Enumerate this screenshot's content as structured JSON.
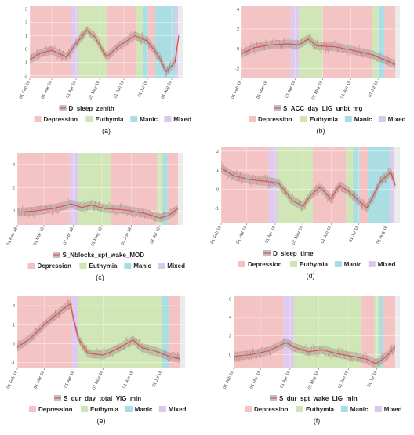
{
  "colors": {
    "depression": "#f4c2c2",
    "euthymia": "#cfe6b4",
    "manic": "#a8dde3",
    "mixed": "#dcc8ee",
    "line": "#d9534f",
    "ribbon": "#9a9a9a",
    "panel_bg": "#ebebeb",
    "grid": "#ffffff"
  },
  "legend_labels": {
    "depression": "Depression",
    "euthymia": "Euthymia",
    "manic": "Manic",
    "mixed": "Mixed"
  },
  "chart_data": [
    {
      "type": "line",
      "panel_label": "(a)",
      "series_name": "D_sleep_zenith",
      "ylim": [
        -2.2,
        3.2
      ],
      "y_ticks": [
        -2,
        -1,
        0,
        1,
        2,
        3
      ],
      "x_ticks": [
        "01 Feb 18",
        "01 Mar 18",
        "01 Apr 18",
        "01 May 18",
        "01 Jun 18",
        "01 Jul 18",
        "01 Aug 18"
      ],
      "xlim": [
        "2018-02-01",
        "2018-08-15"
      ],
      "states": [
        {
          "state": "depression",
          "start": "2018-02-01",
          "end": "2018-03-25"
        },
        {
          "state": "mixed",
          "start": "2018-03-25",
          "end": "2018-04-03"
        },
        {
          "state": "euthymia",
          "start": "2018-04-03",
          "end": "2018-05-10"
        },
        {
          "state": "depression",
          "start": "2018-05-10",
          "end": "2018-06-17"
        },
        {
          "state": "euthymia",
          "start": "2018-06-17",
          "end": "2018-06-25"
        },
        {
          "state": "manic",
          "start": "2018-06-25",
          "end": "2018-07-02"
        },
        {
          "state": "depression",
          "start": "2018-07-02",
          "end": "2018-07-11"
        },
        {
          "state": "manic",
          "start": "2018-07-11",
          "end": "2018-08-05"
        },
        {
          "state": "mixed",
          "start": "2018-08-05",
          "end": "2018-08-09"
        }
      ],
      "trend": [
        {
          "x": "2018-02-01",
          "y": -0.8
        },
        {
          "x": "2018-02-15",
          "y": -0.3
        },
        {
          "x": "2018-03-01",
          "y": -0.1
        },
        {
          "x": "2018-03-20",
          "y": -0.6
        },
        {
          "x": "2018-04-01",
          "y": 0.4
        },
        {
          "x": "2018-04-15",
          "y": 1.4
        },
        {
          "x": "2018-04-25",
          "y": 0.9
        },
        {
          "x": "2018-05-10",
          "y": -0.6
        },
        {
          "x": "2018-05-25",
          "y": 0.2
        },
        {
          "x": "2018-06-15",
          "y": 1.0
        },
        {
          "x": "2018-07-01",
          "y": 0.6
        },
        {
          "x": "2018-07-15",
          "y": -0.5
        },
        {
          "x": "2018-07-25",
          "y": -1.7
        },
        {
          "x": "2018-08-05",
          "y": -1.0
        },
        {
          "x": "2018-08-10",
          "y": 1.0
        }
      ]
    },
    {
      "type": "line",
      "panel_label": "(b)",
      "series_name": "S_ACC_day_LIG_unbt_mg",
      "ylim": [
        -3,
        4.3
      ],
      "y_ticks": [
        -2,
        0,
        2,
        4
      ],
      "x_ticks": [
        "01 Feb 18",
        "01 Mar 18",
        "01 Apr 18",
        "01 May 18",
        "01 Jun 18",
        "01 Jul 18"
      ],
      "xlim": [
        "2018-02-01",
        "2018-07-25"
      ],
      "states": [
        {
          "state": "depression",
          "start": "2018-02-01",
          "end": "2018-03-27"
        },
        {
          "state": "mixed",
          "start": "2018-03-27",
          "end": "2018-04-05"
        },
        {
          "state": "euthymia",
          "start": "2018-04-05",
          "end": "2018-05-01"
        },
        {
          "state": "depression",
          "start": "2018-05-01",
          "end": "2018-06-25"
        },
        {
          "state": "euthymia",
          "start": "2018-06-25",
          "end": "2018-07-01"
        },
        {
          "state": "manic",
          "start": "2018-07-01",
          "end": "2018-07-08"
        },
        {
          "state": "depression",
          "start": "2018-07-08",
          "end": "2018-07-20"
        }
      ],
      "trend": [
        {
          "x": "2018-02-01",
          "y": -0.5
        },
        {
          "x": "2018-02-15",
          "y": 0.1
        },
        {
          "x": "2018-03-05",
          "y": 0.4
        },
        {
          "x": "2018-03-25",
          "y": 0.5
        },
        {
          "x": "2018-04-05",
          "y": 0.4
        },
        {
          "x": "2018-04-15",
          "y": 1.0
        },
        {
          "x": "2018-04-25",
          "y": 0.3
        },
        {
          "x": "2018-05-15",
          "y": 0.2
        },
        {
          "x": "2018-06-05",
          "y": -0.2
        },
        {
          "x": "2018-06-25",
          "y": -0.6
        },
        {
          "x": "2018-07-10",
          "y": -1.2
        },
        {
          "x": "2018-07-20",
          "y": -1.6
        }
      ]
    },
    {
      "type": "line",
      "panel_label": "(c)",
      "series_name": "S_Nblocks_spt_wake_MOD",
      "ylim": [
        -1.2,
        5
      ],
      "y_ticks": [
        0,
        2,
        4
      ],
      "x_ticks": [
        "01 Feb 18",
        "01 Mar 18",
        "01 Apr 18",
        "01 May 18",
        "01 Jun 18",
        "01 Jul 18"
      ],
      "xlim": [
        "2018-02-01",
        "2018-07-25"
      ],
      "states": [
        {
          "state": "depression",
          "start": "2018-02-01",
          "end": "2018-03-28"
        },
        {
          "state": "mixed",
          "start": "2018-03-28",
          "end": "2018-04-06"
        },
        {
          "state": "euthymia",
          "start": "2018-04-06",
          "end": "2018-05-10"
        },
        {
          "state": "depression",
          "start": "2018-05-10",
          "end": "2018-06-28"
        },
        {
          "state": "euthymia",
          "start": "2018-06-28",
          "end": "2018-07-04"
        },
        {
          "state": "manic",
          "start": "2018-07-04",
          "end": "2018-07-09"
        },
        {
          "state": "depression",
          "start": "2018-07-09",
          "end": "2018-07-20"
        }
      ],
      "trend": [
        {
          "x": "2018-02-01",
          "y": -0.1
        },
        {
          "x": "2018-02-20",
          "y": 0.0
        },
        {
          "x": "2018-03-10",
          "y": 0.2
        },
        {
          "x": "2018-03-30",
          "y": 0.6
        },
        {
          "x": "2018-04-10",
          "y": 0.3
        },
        {
          "x": "2018-04-20",
          "y": 0.5
        },
        {
          "x": "2018-05-05",
          "y": 0.2
        },
        {
          "x": "2018-05-25",
          "y": 0.1
        },
        {
          "x": "2018-06-15",
          "y": -0.2
        },
        {
          "x": "2018-07-01",
          "y": -0.6
        },
        {
          "x": "2018-07-10",
          "y": -0.4
        },
        {
          "x": "2018-07-20",
          "y": 0.2
        }
      ]
    },
    {
      "type": "line",
      "panel_label": "(d)",
      "series_name": "D_sleep_time",
      "ylim": [
        -1.8,
        2.2
      ],
      "y_ticks": [
        -1,
        0,
        1,
        2
      ],
      "x_ticks": [
        "01 Feb 18",
        "01 Mar 18",
        "01 Apr 18",
        "01 May 18",
        "01 Jun 18",
        "01 Jul 18",
        "01 Aug 18"
      ],
      "xlim": [
        "2018-02-01",
        "2018-08-15"
      ],
      "states": [
        {
          "state": "depression",
          "start": "2018-02-01",
          "end": "2018-03-25"
        },
        {
          "state": "mixed",
          "start": "2018-03-25",
          "end": "2018-04-03"
        },
        {
          "state": "euthymia",
          "start": "2018-04-03",
          "end": "2018-05-12"
        },
        {
          "state": "depression",
          "start": "2018-05-12",
          "end": "2018-06-17"
        },
        {
          "state": "euthymia",
          "start": "2018-06-17",
          "end": "2018-06-25"
        },
        {
          "state": "manic",
          "start": "2018-06-25",
          "end": "2018-07-02"
        },
        {
          "state": "depression",
          "start": "2018-07-02",
          "end": "2018-07-11"
        },
        {
          "state": "manic",
          "start": "2018-07-11",
          "end": "2018-08-05"
        },
        {
          "state": "mixed",
          "start": "2018-08-05",
          "end": "2018-08-09"
        }
      ],
      "trend": [
        {
          "x": "2018-02-01",
          "y": 1.1
        },
        {
          "x": "2018-02-15",
          "y": 0.7
        },
        {
          "x": "2018-03-05",
          "y": 0.5
        },
        {
          "x": "2018-03-25",
          "y": 0.4
        },
        {
          "x": "2018-04-05",
          "y": 0.3
        },
        {
          "x": "2018-04-20",
          "y": -0.6
        },
        {
          "x": "2018-05-01",
          "y": -0.9
        },
        {
          "x": "2018-05-10",
          "y": -0.3
        },
        {
          "x": "2018-05-20",
          "y": 0.1
        },
        {
          "x": "2018-06-01",
          "y": -0.5
        },
        {
          "x": "2018-06-10",
          "y": 0.2
        },
        {
          "x": "2018-06-20",
          "y": -0.1
        },
        {
          "x": "2018-07-01",
          "y": -0.6
        },
        {
          "x": "2018-07-10",
          "y": -1.0
        },
        {
          "x": "2018-07-25",
          "y": 0.4
        },
        {
          "x": "2018-08-05",
          "y": 0.9
        },
        {
          "x": "2018-08-10",
          "y": 0.2
        }
      ]
    },
    {
      "type": "line",
      "panel_label": "(e)",
      "series_name": "S_dur_day_total_VIG_min",
      "ylim": [
        -1.3,
        2.5
      ],
      "y_ticks": [
        -1,
        0,
        1,
        2
      ],
      "x_ticks": [
        "01 Feb 18",
        "01 Mar 18",
        "01 Apr 18",
        "01 May 18",
        "01 Jun 18",
        "01 Jul 18"
      ],
      "xlim": [
        "2018-02-01",
        "2018-07-25"
      ],
      "states": [
        {
          "state": "depression",
          "start": "2018-02-01",
          "end": "2018-03-30"
        },
        {
          "state": "mixed",
          "start": "2018-03-30",
          "end": "2018-04-05"
        },
        {
          "state": "euthymia",
          "start": "2018-04-05",
          "end": "2018-06-23"
        },
        {
          "state": "euthymia",
          "start": "2018-06-23",
          "end": "2018-07-01"
        },
        {
          "state": "manic",
          "start": "2018-07-01",
          "end": "2018-07-08"
        },
        {
          "state": "depression",
          "start": "2018-07-08",
          "end": "2018-07-20"
        }
      ],
      "trend": [
        {
          "x": "2018-02-01",
          "y": -0.2
        },
        {
          "x": "2018-02-15",
          "y": 0.3
        },
        {
          "x": "2018-03-01",
          "y": 1.0
        },
        {
          "x": "2018-03-20",
          "y": 1.8
        },
        {
          "x": "2018-03-28",
          "y": 2.1
        },
        {
          "x": "2018-04-05",
          "y": 0.3
        },
        {
          "x": "2018-04-15",
          "y": -0.5
        },
        {
          "x": "2018-05-01",
          "y": -0.6
        },
        {
          "x": "2018-05-15",
          "y": -0.3
        },
        {
          "x": "2018-06-01",
          "y": 0.2
        },
        {
          "x": "2018-06-10",
          "y": -0.2
        },
        {
          "x": "2018-06-25",
          "y": -0.4
        },
        {
          "x": "2018-07-10",
          "y": -0.7
        },
        {
          "x": "2018-07-20",
          "y": -0.8
        }
      ]
    },
    {
      "type": "line",
      "panel_label": "(f)",
      "series_name": "S_dur_spt_wake_LIG_min",
      "ylim": [
        -1.5,
        6.3
      ],
      "y_ticks": [
        0,
        2,
        4,
        6
      ],
      "x_ticks": [
        "01 Feb 18",
        "01 Mar 18",
        "01 Apr 18",
        "01 May 18",
        "01 Jun 18",
        "01 Jul 18"
      ],
      "xlim": [
        "2018-02-01",
        "2018-07-25"
      ],
      "states": [
        {
          "state": "depression",
          "start": "2018-02-01",
          "end": "2018-03-25"
        },
        {
          "state": "mixed",
          "start": "2018-03-25",
          "end": "2018-04-05"
        },
        {
          "state": "euthymia",
          "start": "2018-04-05",
          "end": "2018-06-15"
        },
        {
          "state": "depression",
          "start": "2018-06-15",
          "end": "2018-06-28"
        },
        {
          "state": "euthymia",
          "start": "2018-06-28",
          "end": "2018-07-03"
        },
        {
          "state": "manic",
          "start": "2018-07-03",
          "end": "2018-07-07"
        },
        {
          "state": "depression",
          "start": "2018-07-07",
          "end": "2018-07-20"
        }
      ],
      "trend": [
        {
          "x": "2018-02-01",
          "y": -0.2
        },
        {
          "x": "2018-02-20",
          "y": 0.0
        },
        {
          "x": "2018-03-10",
          "y": 0.4
        },
        {
          "x": "2018-03-28",
          "y": 1.3
        },
        {
          "x": "2018-04-05",
          "y": 0.8
        },
        {
          "x": "2018-04-20",
          "y": 0.3
        },
        {
          "x": "2018-05-05",
          "y": 0.5
        },
        {
          "x": "2018-05-20",
          "y": 0.1
        },
        {
          "x": "2018-06-05",
          "y": -0.2
        },
        {
          "x": "2018-06-20",
          "y": -0.5
        },
        {
          "x": "2018-06-30",
          "y": -1.0
        },
        {
          "x": "2018-07-10",
          "y": -0.3
        },
        {
          "x": "2018-07-20",
          "y": 0.8
        }
      ]
    }
  ]
}
